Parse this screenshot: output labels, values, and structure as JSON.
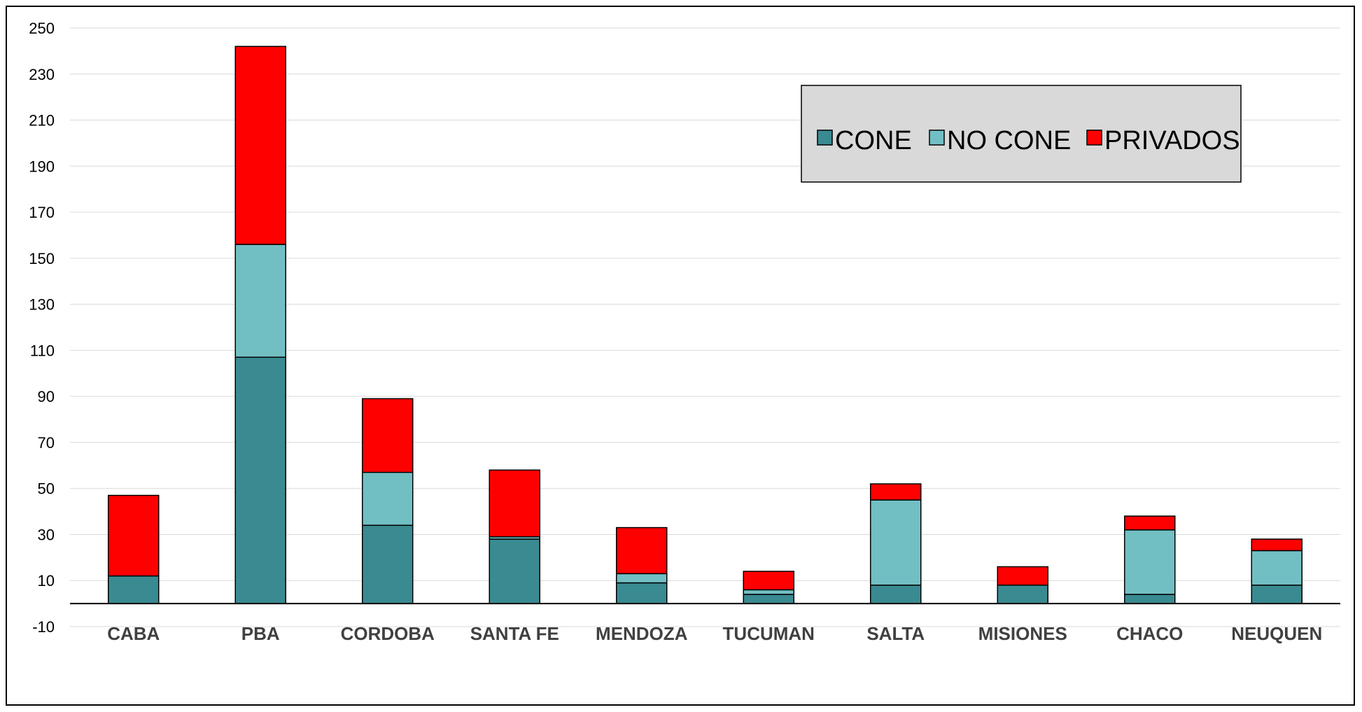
{
  "chart_data": {
    "type": "bar",
    "stacked": true,
    "categories": [
      "CABA",
      "PBA",
      "CORDOBA",
      "SANTA FE",
      "MENDOZA",
      "TUCUMAN",
      "SALTA",
      "MISIONES",
      "CHACO",
      "NEUQUEN"
    ],
    "series": [
      {
        "name": "CONE",
        "color": "#3a8a91",
        "values": [
          12,
          107,
          34,
          28,
          9,
          4,
          8,
          8,
          4,
          8
        ]
      },
      {
        "name": "NO CONE",
        "color": "#72bfc3",
        "values": [
          0,
          49,
          23,
          1,
          4,
          2,
          37,
          0,
          28,
          15
        ]
      },
      {
        "name": "PRIVADOS",
        "color": "#ff0000",
        "values": [
          35,
          86,
          32,
          29,
          20,
          8,
          7,
          8,
          6,
          5
        ]
      }
    ],
    "title": "",
    "xlabel": "",
    "ylabel": "",
    "ylim": [
      -10,
      250
    ],
    "yticks": [
      "-10",
      "10",
      "30",
      "50",
      "70",
      "90",
      "110",
      "130",
      "150",
      "170",
      "190",
      "210",
      "230",
      "250"
    ],
    "grid": true,
    "legend_position": "top-right"
  }
}
